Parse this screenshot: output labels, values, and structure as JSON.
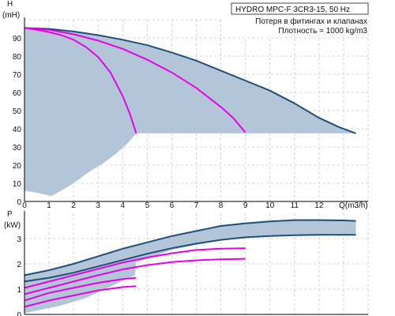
{
  "info_box": {
    "title": "HYDRO MPC-F 3CR3-15, 50 Hz",
    "line1": "Потеря в фитингах и клапанах",
    "line2": "Плотность = 1000 kg/m3"
  },
  "colors": {
    "curve_main": "#1f4e79",
    "curve_magenta": "#e600e6",
    "shade": "#b3c6d9",
    "grid": "#c8c8c8"
  },
  "chart_data": [
    {
      "type": "line",
      "name": "head",
      "xlabel": "Q(m3/h)",
      "ylabel_line1": "H",
      "ylabel_line2": "(mH)",
      "xlim": [
        0,
        14
      ],
      "ylim": [
        0,
        100
      ],
      "x_ticks": [
        "0",
        "1",
        "2",
        "3",
        "4",
        "5",
        "6",
        "7",
        "8",
        "9",
        "10",
        "11",
        "12"
      ],
      "y_ticks": [
        "0",
        "10",
        "20",
        "30",
        "40",
        "50",
        "60",
        "70",
        "80",
        "90"
      ],
      "grid": true,
      "region_upper": [
        [
          0,
          95.5
        ],
        [
          2,
          93.5
        ],
        [
          4,
          89
        ],
        [
          6,
          82
        ],
        [
          8,
          72
        ],
        [
          10,
          61
        ],
        [
          11,
          54
        ],
        [
          12,
          46
        ],
        [
          13,
          39.5
        ],
        [
          13.5,
          37.5
        ]
      ],
      "region_lower": [
        [
          4.55,
          37.5
        ],
        [
          4.2,
          32
        ],
        [
          3.7,
          26
        ],
        [
          3.2,
          21
        ],
        [
          2.6,
          16
        ],
        [
          2,
          10
        ],
        [
          1.5,
          6
        ],
        [
          1.1,
          3
        ],
        [
          0.6,
          4.5
        ],
        [
          0,
          6
        ]
      ],
      "series": [
        {
          "color": "#1f4e79",
          "points": [
            [
              0,
              95.5
            ],
            [
              1,
              95
            ],
            [
              2,
              93.5
            ],
            [
              3,
              91.5
            ],
            [
              4,
              89
            ],
            [
              5,
              86
            ],
            [
              6,
              82
            ],
            [
              7,
              77.5
            ],
            [
              8,
              72
            ],
            [
              9,
              66.5
            ],
            [
              10,
              61
            ],
            [
              11,
              54
            ],
            [
              12,
              46
            ],
            [
              12.8,
              41
            ],
            [
              13.5,
              37.5
            ]
          ]
        },
        {
          "color": "#e600e6",
          "points": [
            [
              0,
              95.5
            ],
            [
              0.5,
              94.5
            ],
            [
              1,
              93.2
            ],
            [
              1.5,
              91.5
            ],
            [
              2,
              89
            ],
            [
              2.5,
              85
            ],
            [
              3,
              79.5
            ],
            [
              3.5,
              71
            ],
            [
              4,
              58
            ],
            [
              4.3,
              48
            ],
            [
              4.55,
              37.5
            ]
          ]
        },
        {
          "color": "#e600e6",
          "points": [
            [
              0,
              95.5
            ],
            [
              1,
              94.5
            ],
            [
              2,
              92
            ],
            [
              3,
              88.5
            ],
            [
              4,
              84
            ],
            [
              5,
              78
            ],
            [
              6,
              71
            ],
            [
              7,
              62.5
            ],
            [
              8,
              52
            ],
            [
              8.5,
              46
            ],
            [
              9,
              38
            ]
          ]
        }
      ]
    },
    {
      "type": "line",
      "name": "power",
      "ylabel_line1": "P",
      "ylabel_line2": "(kW)",
      "xlim": [
        0,
        14
      ],
      "ylim": [
        0,
        4
      ],
      "y_ticks": [
        "0",
        "1",
        "2",
        "3"
      ],
      "grid": true,
      "region_upper": [
        [
          0,
          1.55
        ],
        [
          1,
          1.75
        ],
        [
          2,
          2.0
        ],
        [
          3,
          2.3
        ],
        [
          4,
          2.6
        ],
        [
          5,
          2.85
        ],
        [
          6,
          3.1
        ],
        [
          7,
          3.3
        ],
        [
          8,
          3.5
        ],
        [
          9,
          3.6
        ],
        [
          10,
          3.68
        ],
        [
          11,
          3.73
        ],
        [
          12,
          3.73
        ],
        [
          13.5,
          3.7
        ]
      ],
      "region_lower": [
        [
          13.5,
          3.15
        ],
        [
          12,
          3.15
        ],
        [
          11,
          3.13
        ],
        [
          10,
          3.1
        ],
        [
          9,
          3.05
        ],
        [
          8,
          2.95
        ],
        [
          6,
          2.55
        ],
        [
          4.55,
          2.05
        ],
        [
          4.5,
          1.55
        ],
        [
          3.5,
          1.1
        ],
        [
          2.5,
          0.65
        ],
        [
          1.5,
          0.35
        ],
        [
          0,
          0.05
        ]
      ],
      "series": [
        {
          "color": "#1f4e79",
          "points": [
            [
              0,
              1.55
            ],
            [
              1,
              1.75
            ],
            [
              2,
              2.0
            ],
            [
              3,
              2.3
            ],
            [
              4,
              2.6
            ],
            [
              5,
              2.85
            ],
            [
              6,
              3.1
            ],
            [
              7,
              3.3
            ],
            [
              8,
              3.5
            ],
            [
              9,
              3.6
            ],
            [
              10,
              3.68
            ],
            [
              11,
              3.73
            ],
            [
              12,
              3.73
            ],
            [
              13,
              3.72
            ],
            [
              13.5,
              3.7
            ]
          ]
        },
        {
          "color": "#1f4e79",
          "points": [
            [
              0,
              1.3
            ],
            [
              1,
              1.45
            ],
            [
              2,
              1.65
            ],
            [
              3,
              1.9
            ],
            [
              4,
              2.15
            ],
            [
              5,
              2.4
            ],
            [
              6,
              2.62
            ],
            [
              7,
              2.8
            ],
            [
              8,
              2.95
            ],
            [
              9,
              3.05
            ],
            [
              10,
              3.1
            ],
            [
              11,
              3.13
            ],
            [
              12,
              3.15
            ],
            [
              13,
              3.15
            ],
            [
              13.5,
              3.15
            ]
          ]
        },
        {
          "color": "#e600e6",
          "points": [
            [
              0,
              1.05
            ],
            [
              1,
              1.3
            ],
            [
              2,
              1.55
            ],
            [
              3,
              1.8
            ],
            [
              4,
              2.05
            ],
            [
              5,
              2.25
            ],
            [
              6,
              2.42
            ],
            [
              7,
              2.55
            ],
            [
              8,
              2.6
            ],
            [
              9,
              2.62
            ]
          ]
        },
        {
          "color": "#e600e6",
          "points": [
            [
              0,
              0.8
            ],
            [
              1,
              1.05
            ],
            [
              2,
              1.3
            ],
            [
              3,
              1.55
            ],
            [
              4,
              1.78
            ],
            [
              5,
              1.95
            ],
            [
              6,
              2.07
            ],
            [
              7,
              2.14
            ],
            [
              8,
              2.18
            ],
            [
              9,
              2.2
            ]
          ]
        },
        {
          "color": "#e600e6",
          "points": [
            [
              0,
              0.55
            ],
            [
              1,
              0.85
            ],
            [
              2,
              1.05
            ],
            [
              3,
              1.25
            ],
            [
              4,
              1.4
            ],
            [
              4.55,
              1.45
            ]
          ]
        },
        {
          "color": "#e600e6",
          "points": [
            [
              0,
              0.3
            ],
            [
              1,
              0.55
            ],
            [
              2,
              0.75
            ],
            [
              3,
              0.95
            ],
            [
              4,
              1.08
            ],
            [
              4.55,
              1.12
            ]
          ]
        }
      ]
    }
  ]
}
